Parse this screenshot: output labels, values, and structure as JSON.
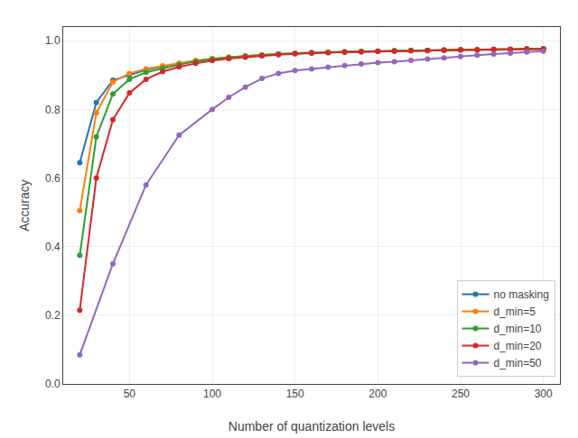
{
  "chart_data": {
    "type": "line",
    "xlabel": "Number of quantization levels",
    "ylabel": "Accuracy",
    "marker": "circle",
    "series": [
      {
        "name": "no masking",
        "color": "#1f77b4",
        "x": [
          20,
          30,
          40,
          50,
          60,
          70,
          80,
          90,
          100,
          110,
          120,
          130,
          140,
          150,
          160,
          170,
          180,
          190,
          200,
          210,
          220,
          230,
          240,
          250,
          260,
          270,
          280,
          290,
          300
        ],
        "values": [
          0.645,
          0.82,
          0.885,
          0.9,
          0.915,
          0.925,
          0.933,
          0.94,
          0.947,
          0.952,
          0.955,
          0.958,
          0.961,
          0.963,
          0.965,
          0.966,
          0.967,
          0.968,
          0.969,
          0.97,
          0.971,
          0.972,
          0.972,
          0.973,
          0.974,
          0.974,
          0.975,
          0.975,
          0.976
        ]
      },
      {
        "name": "d_min=5",
        "color": "#ff7f0e",
        "x": [
          20,
          30,
          40,
          50,
          60,
          70,
          80,
          90,
          100,
          110,
          120,
          130,
          140,
          150,
          160,
          170,
          180,
          190,
          200,
          210,
          220,
          230,
          240,
          250,
          260,
          270,
          280,
          290,
          300
        ],
        "values": [
          0.505,
          0.79,
          0.88,
          0.905,
          0.918,
          0.927,
          0.935,
          0.942,
          0.948,
          0.952,
          0.956,
          0.959,
          0.962,
          0.964,
          0.965,
          0.967,
          0.968,
          0.969,
          0.97,
          0.971,
          0.972,
          0.972,
          0.973,
          0.974,
          0.974,
          0.975,
          0.975,
          0.976,
          0.976
        ]
      },
      {
        "name": "d_min=10",
        "color": "#2ca02c",
        "x": [
          20,
          30,
          40,
          50,
          60,
          70,
          80,
          90,
          100,
          110,
          120,
          130,
          140,
          150,
          160,
          170,
          180,
          190,
          200,
          210,
          220,
          230,
          240,
          250,
          260,
          270,
          280,
          290,
          300
        ],
        "values": [
          0.375,
          0.72,
          0.845,
          0.888,
          0.908,
          0.92,
          0.93,
          0.94,
          0.947,
          0.951,
          0.955,
          0.958,
          0.961,
          0.963,
          0.965,
          0.966,
          0.968,
          0.969,
          0.97,
          0.971,
          0.972,
          0.972,
          0.973,
          0.974,
          0.974,
          0.975,
          0.975,
          0.976,
          0.976
        ]
      },
      {
        "name": "d_min=20",
        "color": "#d62728",
        "x": [
          20,
          30,
          40,
          50,
          60,
          70,
          80,
          90,
          100,
          110,
          120,
          130,
          140,
          150,
          160,
          170,
          180,
          190,
          200,
          210,
          220,
          230,
          240,
          250,
          260,
          270,
          280,
          290,
          300
        ],
        "values": [
          0.215,
          0.6,
          0.77,
          0.848,
          0.888,
          0.91,
          0.924,
          0.934,
          0.942,
          0.948,
          0.952,
          0.956,
          0.959,
          0.962,
          0.964,
          0.965,
          0.967,
          0.968,
          0.969,
          0.97,
          0.971,
          0.972,
          0.973,
          0.974,
          0.974,
          0.975,
          0.975,
          0.976,
          0.976
        ]
      },
      {
        "name": "d_min=50",
        "color": "#9467bd",
        "x": [
          20,
          40,
          60,
          80,
          100,
          110,
          120,
          130,
          140,
          150,
          160,
          170,
          180,
          190,
          200,
          210,
          220,
          230,
          240,
          250,
          260,
          270,
          280,
          290,
          300
        ],
        "values": [
          0.085,
          0.35,
          0.58,
          0.725,
          0.8,
          0.835,
          0.865,
          0.89,
          0.905,
          0.913,
          0.918,
          0.923,
          0.928,
          0.932,
          0.936,
          0.939,
          0.943,
          0.947,
          0.95,
          0.954,
          0.958,
          0.961,
          0.964,
          0.967,
          0.97
        ]
      }
    ],
    "xlim": [
      10,
      310
    ],
    "ylim": [
      0.0,
      1.04
    ],
    "xticks": [
      50,
      100,
      150,
      200,
      250,
      300
    ],
    "yticks": [
      {
        "value": 0.0,
        "label": "0.0"
      },
      0.2,
      0.4,
      0.6,
      0.8,
      {
        "value": 1.0,
        "label": "1.0"
      }
    ],
    "legend": "lower right",
    "grid": true
  }
}
